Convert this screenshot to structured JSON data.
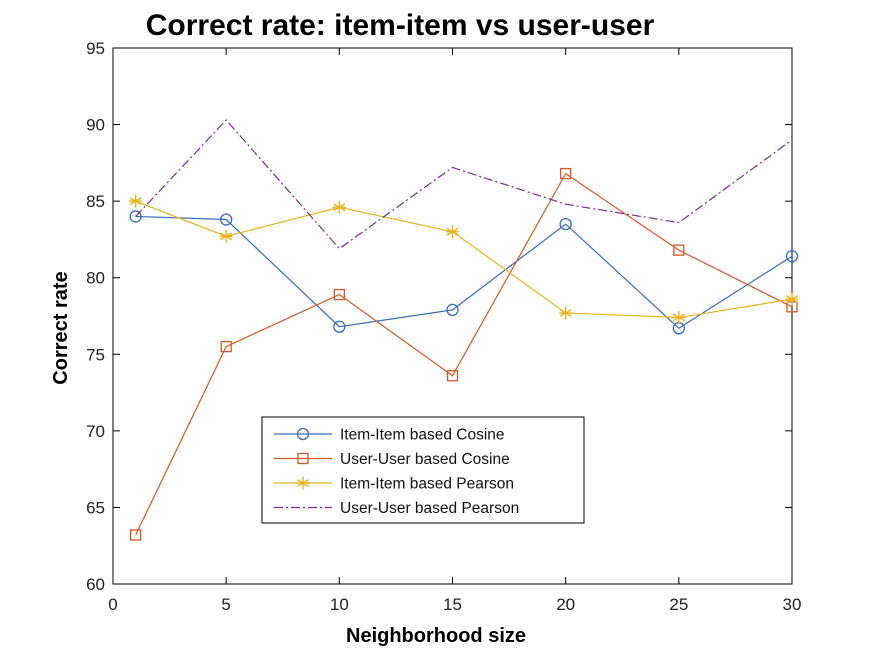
{
  "chart_data": {
    "type": "line",
    "title": "Correct rate: item-item vs user-user",
    "xlabel": "Neighborhood size",
    "ylabel": "Correct rate",
    "xlim": [
      0,
      30
    ],
    "ylim": [
      60,
      95
    ],
    "xticks": [
      0,
      5,
      10,
      15,
      20,
      25,
      30
    ],
    "yticks": [
      60,
      65,
      70,
      75,
      80,
      85,
      90,
      95
    ],
    "x": [
      1,
      5,
      10,
      15,
      20,
      25,
      30
    ],
    "grid": false,
    "legend_position": "lower-center",
    "series": [
      {
        "name": "Item-Item based Cosine",
        "color": "#3a6db5",
        "marker": "circle",
        "dash": "solid",
        "values": [
          84.0,
          83.8,
          76.8,
          77.9,
          83.5,
          76.7,
          81.4
        ]
      },
      {
        "name": "User-User based Cosine",
        "color": "#d2592a",
        "marker": "square",
        "dash": "solid",
        "values": [
          63.2,
          75.5,
          78.9,
          73.6,
          86.8,
          81.8,
          78.1
        ]
      },
      {
        "name": "Item-Item based Pearson",
        "color": "#e6b422",
        "marker": "asterisk",
        "dash": "solid",
        "values": [
          85.0,
          82.7,
          84.6,
          83.0,
          77.7,
          77.4,
          78.6
        ]
      },
      {
        "name": "User-User based Pearson",
        "color": "#7e2f8e",
        "marker": "none",
        "dash": "dashdot",
        "values": [
          84.0,
          90.3,
          81.9,
          87.2,
          84.8,
          83.6,
          89.0
        ]
      }
    ]
  }
}
